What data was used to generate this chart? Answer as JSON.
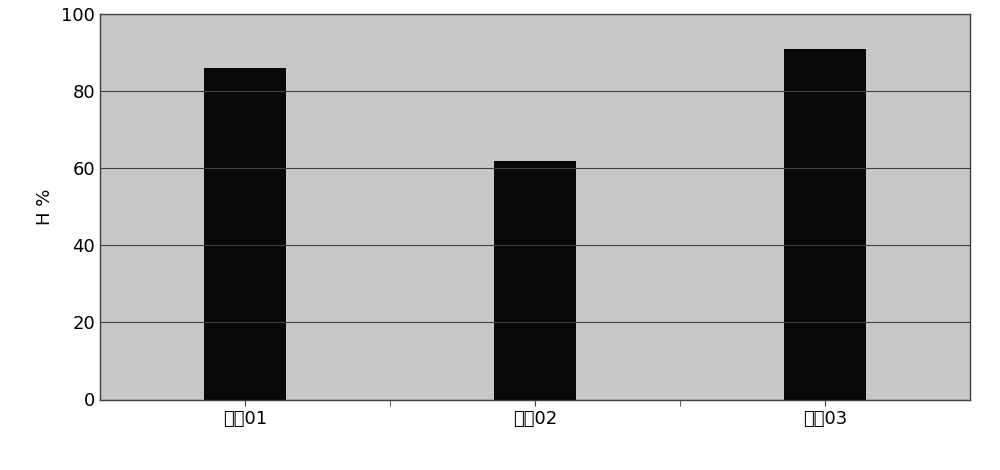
{
  "categories": [
    "工色01",
    "工色02",
    "工色03"
  ],
  "values": [
    86,
    62,
    91
  ],
  "bar_color": "#080808",
  "bar_width": 0.28,
  "ylabel": "H %",
  "ylim": [
    0,
    100
  ],
  "yticks": [
    0,
    20,
    40,
    60,
    80,
    100
  ],
  "plot_bg_color": "#c8c8c8",
  "figure_bg_color": "#f0f0f0",
  "outer_bg_color": "#ffffff",
  "grid_color": "#404040",
  "xlabel_fontsize": 13,
  "ylabel_fontsize": 13,
  "tick_fontsize": 13,
  "bar_edge_color": "#080808",
  "spine_color": "#404040"
}
